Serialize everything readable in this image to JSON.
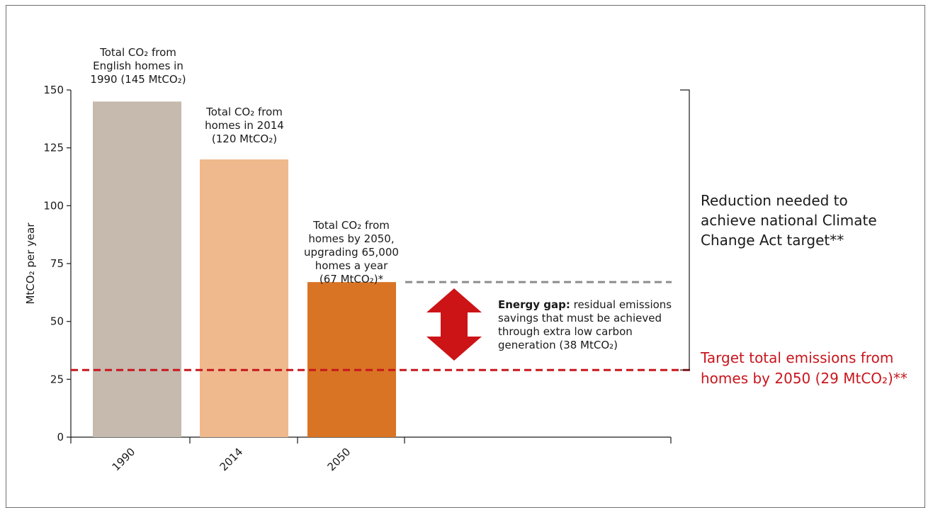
{
  "colors": {
    "bar_1990": "#c6b9ae",
    "bar_2014": "#efb98d",
    "bar_2050": "#d97424",
    "target_line": "#c8161d",
    "gap_line": "#8c8c8c",
    "gap_arrow": "#cc1417",
    "right_red_text": "#c8161d"
  },
  "chart_data": {
    "type": "bar",
    "categories": [
      "1990",
      "2014",
      "2050"
    ],
    "values": [
      145,
      120,
      67
    ],
    "ylabel": "MtCO₂ per year",
    "ylim": [
      0,
      150
    ],
    "yticks": [
      0,
      25,
      50,
      75,
      100,
      125,
      150
    ],
    "grid": false,
    "bar_annotations": [
      [
        "Total CO₂ from",
        "English homes in",
        "1990 (145 MtCO₂)"
      ],
      [
        "Total CO₂ from",
        "homes in 2014",
        "(120 MtCO₂)"
      ],
      [
        "Total CO₂ from",
        "homes by 2050,",
        "upgrading 65,000",
        "homes a year",
        "(67 MtCO₂)*"
      ]
    ],
    "reference_lines": {
      "target": {
        "value": 29,
        "style": "dashed-red"
      },
      "projected_2050": {
        "value": 67,
        "style": "dashed-grey"
      }
    },
    "energy_gap": {
      "bold": "Energy gap:",
      "lines": [
        " residual emissions",
        "savings that must be achieved",
        "through extra low carbon",
        "generation (38 MtCO₂)"
      ]
    },
    "reduction_label": [
      "Reduction needed to",
      "achieve national Climate",
      "Change Act target**"
    ],
    "target_label": [
      "Target total emissions from",
      "homes by 2050 (29 MtCO₂)**"
    ]
  }
}
